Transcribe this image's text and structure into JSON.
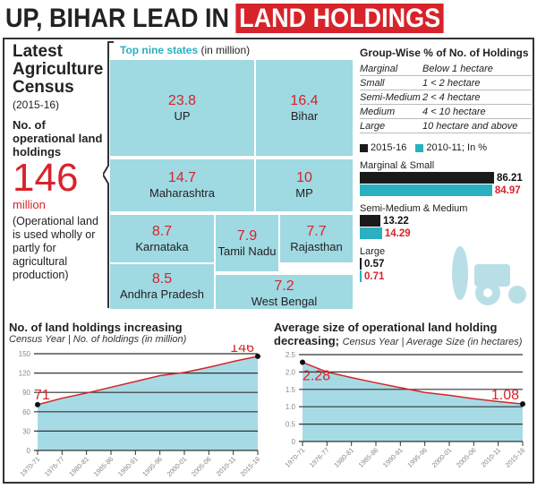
{
  "title": {
    "part1": "UP, BIHAR LEAD IN ",
    "part2": "LAND HOLDINGS"
  },
  "left": {
    "heading": "Latest Agriculture Census",
    "years": "(2015-16)",
    "label": "No. of operational land holdings",
    "value": "146",
    "unit": "million",
    "note": "(Operational land is used wholly or partly for agricultural production)"
  },
  "treemap": {
    "title": "Top nine states",
    "unit": "(in million)",
    "states": [
      {
        "name": "UP",
        "value": "23.8"
      },
      {
        "name": "Bihar",
        "value": "16.4"
      },
      {
        "name": "Maharashtra",
        "value": "14.7"
      },
      {
        "name": "MP",
        "value": "10"
      },
      {
        "name": "Karnataka",
        "value": "8.7"
      },
      {
        "name": "Tamil Nadu",
        "value": "7.9"
      },
      {
        "name": "Rajasthan",
        "value": "7.7"
      },
      {
        "name": "Andhra Pradesh",
        "value": "8.5"
      },
      {
        "name": "West Bengal",
        "value": "7.2"
      }
    ]
  },
  "groups": {
    "title": "Group-Wise % of No. of Holdings",
    "rows": [
      {
        "group": "Marginal",
        "size": "Below 1 hectare"
      },
      {
        "group": "Small",
        "size": "1 < 2 hectare"
      },
      {
        "group": "Semi-Medium",
        "size": "2 < 4 hectare"
      },
      {
        "group": "Medium",
        "size": "4 < 10 hectare"
      },
      {
        "group": "Large",
        "size": "10 hectare and above"
      }
    ]
  },
  "bars": {
    "legend": [
      "2015-16",
      "2010-11; In %"
    ],
    "colors": [
      "#1a1a1a",
      "#2ab0c0"
    ],
    "categories": [
      {
        "label": "Marginal & Small",
        "values": [
          "86.21",
          "84.97"
        ]
      },
      {
        "label": "Semi-Medium & Medium",
        "values": [
          "13.22",
          "14.29"
        ]
      },
      {
        "label": "Large",
        "values": [
          "0.57",
          "0.71"
        ]
      }
    ]
  },
  "chart_data": [
    {
      "type": "area",
      "title": "No. of land holdings increasing",
      "subtitle": "Census Year | No. of holdings (in million)",
      "categories": [
        "1970-71",
        "1976-77",
        "1980-81",
        "1985-86",
        "1990-91",
        "1995-96",
        "2000-01",
        "2005-06",
        "2010-11",
        "2015-16"
      ],
      "values": [
        71,
        81,
        89,
        98,
        107,
        116,
        121,
        129,
        138,
        146
      ],
      "labels": [
        "71",
        "146"
      ],
      "ylim": [
        0,
        150
      ],
      "yticks": [
        "0",
        "30",
        "60",
        "90",
        "120",
        "150"
      ],
      "grid": true
    },
    {
      "type": "area",
      "title": "Average size of operational land holding decreasing;",
      "subtitle": "Census Year | Average Size (in hectares)",
      "categories": [
        "1970-71",
        "1976-77",
        "1980-81",
        "1985-86",
        "1990-91",
        "1995-96",
        "2000-01",
        "2005-06",
        "2010-11",
        "2015-16"
      ],
      "values": [
        2.28,
        2.0,
        1.84,
        1.69,
        1.55,
        1.41,
        1.33,
        1.23,
        1.15,
        1.08
      ],
      "labels": [
        "2.28",
        "1.08"
      ],
      "ylim": [
        0,
        2.5
      ],
      "yticks": [
        "0",
        "0.5",
        "1.0",
        "1.5",
        "2.0",
        "2.5"
      ],
      "grid": true
    }
  ]
}
